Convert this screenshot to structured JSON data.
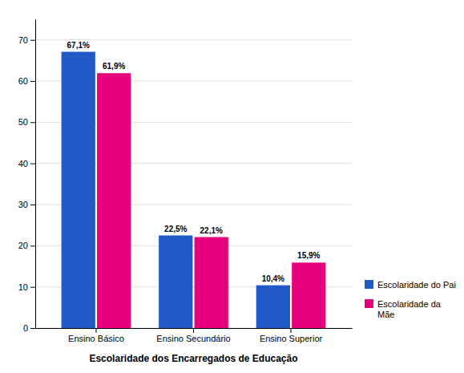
{
  "chart_data": {
    "type": "bar",
    "xlabel": "Escolaridade dos Encarregados de Educação",
    "categories": [
      "Ensino Básico",
      "Ensino Secundário",
      "Ensino Superior"
    ],
    "series": [
      {
        "name": "Escolaridade do Pai",
        "color": "#1F5AC8",
        "values": [
          67.1,
          22.5,
          10.4
        ],
        "value_labels": [
          "67,1%",
          "22,5%",
          "10,4%"
        ]
      },
      {
        "name": "Escolaridade da\nMãe",
        "color": "#E8007D",
        "values": [
          61.9,
          22.1,
          15.9
        ],
        "value_labels": [
          "61,9%",
          "22,1%",
          "15,9%"
        ]
      }
    ],
    "ylim": [
      0,
      75
    ],
    "yticks": [
      0,
      10,
      20,
      30,
      40,
      50,
      60,
      70
    ],
    "grid": true,
    "legend": "right",
    "data_labels": true
  }
}
